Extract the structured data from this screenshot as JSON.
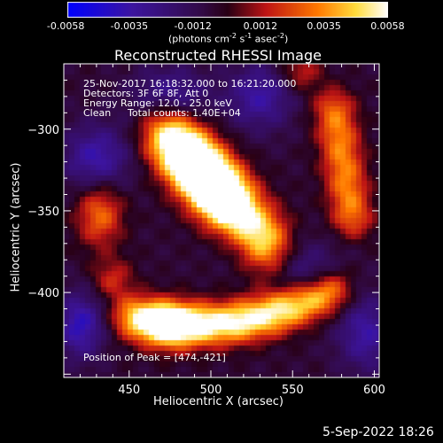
{
  "chart_data": {
    "type": "heatmap",
    "title": "Reconstructed RHESSI Image",
    "xlabel": "Heliocentric X (arcsec)",
    "ylabel": "Heliocentric Y (arcsec)",
    "xlim": [
      410,
      603
    ],
    "ylim": [
      -452,
      -260
    ],
    "x_ticks": [
      450,
      500,
      550,
      600
    ],
    "y_ticks": [
      -300,
      -350,
      -400
    ],
    "colorbar": {
      "range": [
        -0.0058,
        0.0058
      ],
      "ticks": [
        "-0.0058",
        "-0.0035",
        "-0.0012",
        "0.0012",
        "0.0035",
        "0.0058"
      ],
      "unit_parts": [
        "(photons cm",
        "-2",
        " s",
        "-1",
        " asec",
        "-2",
        ")"
      ],
      "colormap": [
        "#0000ff",
        "#3b0c8c",
        "#2a0a3a",
        "#c01010",
        "#ff8c00",
        "#ffffff"
      ]
    },
    "annotations": {
      "time": "25-Nov-2017 16:18:32.000 to 16:21:20.000",
      "detectors": "Detectors: 3F 6F 8F, Att 0",
      "energy": "Energy Range: 12.0 - 25.0 keV",
      "method": "Clean",
      "counts": "Total counts: 1.40E+04",
      "peak": "Position of Peak = [474,-421]"
    },
    "peak": [
      474,
      -421
    ]
  },
  "footer": {
    "date": "5-Sep-2022 18:26"
  }
}
